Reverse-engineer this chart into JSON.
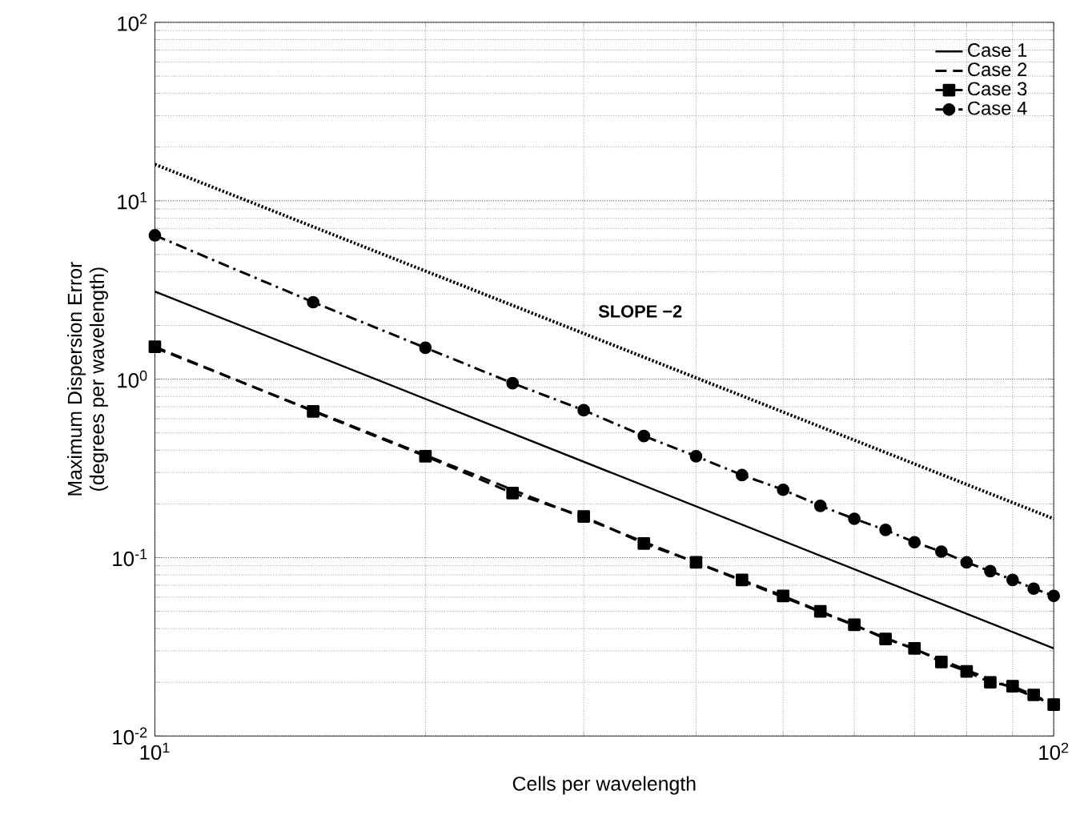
{
  "chart_data": {
    "type": "line",
    "xlabel": "Cells per wavelength",
    "ylabel": "Maximum Dispersion Error\n(degrees per wavelength)",
    "log": "xy",
    "grid": true,
    "legend": "top right",
    "xlim": [
      10,
      100
    ],
    "ylim": [
      0.01,
      100
    ],
    "xticks": [
      {
        "value": 10,
        "label": "10$^{1}$"
      },
      {
        "value": 100,
        "label": "10$^{2}$"
      }
    ],
    "yticks": [
      {
        "value": 0.01,
        "label": "10$^{-2}$"
      },
      {
        "value": 0.1,
        "label": "10$^{-1}$"
      },
      {
        "value": 1,
        "label": "10$^{0}$"
      },
      {
        "value": 10,
        "label": "10$^{1}$"
      },
      {
        "value": 100,
        "label": "10$^{2}$"
      }
    ],
    "annotations": [
      "SLOPE −2"
    ],
    "series": [
      {
        "name": "Case 1",
        "color": "#000000",
        "line_style": "solid",
        "marker": "none",
        "x": [
          10,
          100
        ],
        "values": [
          3.1,
          0.031
        ]
      },
      {
        "name": "Case 2",
        "color": "#000000",
        "line_style": "dashed",
        "x": [
          10,
          100
        ],
        "values": [
          1.5,
          0.015
        ]
      },
      {
        "name": "Case 3",
        "color": "#000000",
        "line_style": "dashed",
        "marker": "square",
        "x": [
          10,
          15,
          20,
          25,
          30,
          35,
          40,
          45,
          50,
          55,
          60,
          65,
          70,
          75,
          80,
          85,
          90,
          95,
          100
        ],
        "values": [
          1.52,
          0.66,
          0.37,
          0.23,
          0.17,
          0.12,
          0.094,
          0.075,
          0.061,
          0.05,
          0.042,
          0.035,
          0.031,
          0.026,
          0.023,
          0.02,
          0.019,
          0.017,
          0.015
        ]
      },
      {
        "name": "Case 4",
        "color": "#000000",
        "line_style": "dashdot",
        "marker": "circle",
        "x": [
          10,
          15,
          20,
          25,
          30,
          35,
          40,
          45,
          50,
          55,
          60,
          65,
          70,
          75,
          80,
          85,
          90,
          95,
          100
        ],
        "values": [
          6.4,
          2.7,
          1.5,
          0.95,
          0.67,
          0.48,
          0.37,
          0.29,
          0.24,
          0.195,
          0.165,
          0.143,
          0.122,
          0.108,
          0.094,
          0.084,
          0.075,
          0.067,
          0.061
        ]
      },
      {
        "color": "#000000",
        "line_style": "dotted",
        "marker": "none",
        "x": [
          10,
          100
        ],
        "values": [
          16,
          0.165
        ]
      }
    ]
  }
}
